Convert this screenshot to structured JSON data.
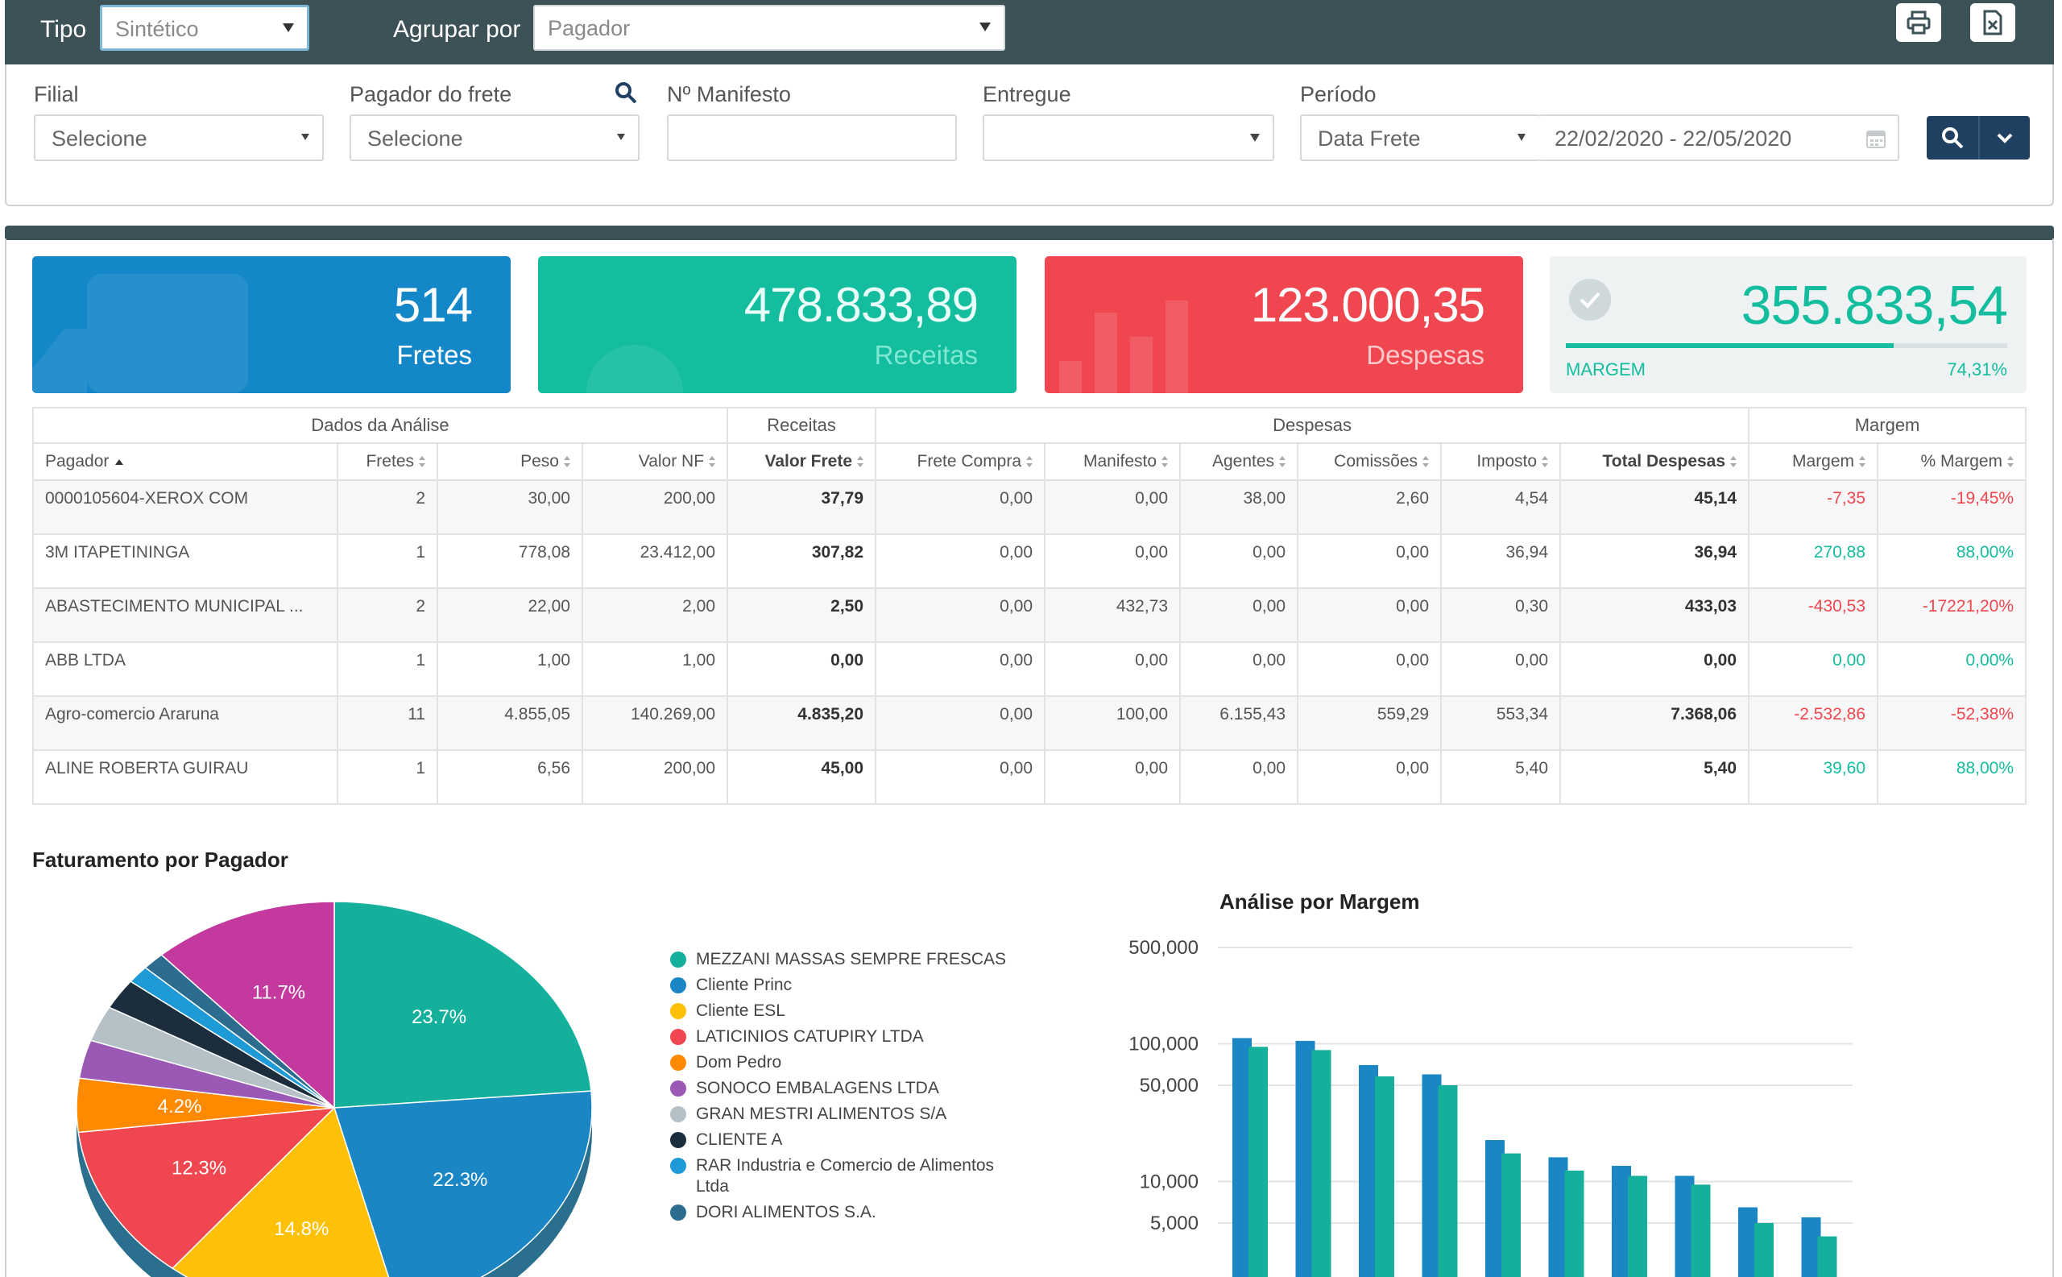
{
  "topbar": {
    "tipo_label": "Tipo",
    "tipo_value": "Sintético",
    "agrupar_label": "Agrupar por",
    "agrupar_value": "Pagador",
    "print_icon": "printer-icon",
    "export_icon": "file-export-icon"
  },
  "filters": {
    "filial_label": "Filial",
    "filial_value": "Selecione",
    "pagador_label": "Pagador do frete",
    "pagador_value": "Selecione",
    "manifesto_label": "Nº Manifesto",
    "manifesto_value": "",
    "entregue_label": "Entregue",
    "entregue_value": "",
    "periodo_label": "Período",
    "periodo_tipo": "Data Frete",
    "periodo_range": "22/02/2020 - 22/05/2020"
  },
  "kpis": {
    "fretes_value": "514",
    "fretes_label": "Fretes",
    "receitas_value": "478.833,89",
    "receitas_label": "Receitas",
    "despesas_value": "123.000,35",
    "despesas_label": "Despesas",
    "margem_value": "355.833,54",
    "margem_label": "MARGEM",
    "margem_percent": "74,31%",
    "margem_fraction": 0.7431
  },
  "table": {
    "groups": [
      "Dados da Análise",
      "Receitas",
      "Despesas",
      "Margem"
    ],
    "headers": [
      "Pagador",
      "Fretes",
      "Peso",
      "Valor NF",
      "Valor Frete",
      "Frete Compra",
      "Manifesto",
      "Agentes",
      "Comissões",
      "Imposto",
      "Total Despesas",
      "Margem",
      "% Margem"
    ],
    "rows": [
      [
        "0000105604-XEROX COM",
        "2",
        "30,00",
        "200,00",
        "37,79",
        "0,00",
        "0,00",
        "38,00",
        "2,60",
        "4,54",
        "45,14",
        "-7,35",
        "-19,45%"
      ],
      [
        "3M ITAPETININGA",
        "1",
        "778,08",
        "23.412,00",
        "307,82",
        "0,00",
        "0,00",
        "0,00",
        "0,00",
        "36,94",
        "36,94",
        "270,88",
        "88,00%"
      ],
      [
        "ABASTECIMENTO MUNICIPAL ...",
        "2",
        "22,00",
        "2,00",
        "2,50",
        "0,00",
        "432,73",
        "0,00",
        "0,00",
        "0,30",
        "433,03",
        "-430,53",
        "-17221,20%"
      ],
      [
        "ABB LTDA",
        "1",
        "1,00",
        "1,00",
        "0,00",
        "0,00",
        "0,00",
        "0,00",
        "0,00",
        "0,00",
        "0,00",
        "0,00",
        "0,00%"
      ],
      [
        "Agro-comercio Araruna",
        "11",
        "4.855,05",
        "140.269,00",
        "4.835,20",
        "0,00",
        "100,00",
        "6.155,43",
        "559,29",
        "553,34",
        "7.368,06",
        "-2.532,86",
        "-52,38%"
      ],
      [
        "ALINE ROBERTA GUIRAU",
        "1",
        "6,56",
        "200,00",
        "45,00",
        "0,00",
        "0,00",
        "0,00",
        "0,00",
        "5,40",
        "5,40",
        "39,60",
        "88,00%"
      ]
    ]
  },
  "pie": {
    "title": "Faturamento por Pagador",
    "legend": [
      {
        "label": "MEZZANI MASSAS SEMPRE FRESCAS",
        "color": "#14b09c"
      },
      {
        "label": "Cliente Princ",
        "color": "#1a86c4"
      },
      {
        "label": "Cliente ESL",
        "color": "#ffc107"
      },
      {
        "label": "LATICINIOS CATUPIRY LTDA",
        "color": "#f0464f"
      },
      {
        "label": "Dom Pedro",
        "color": "#ff8a00"
      },
      {
        "label": "SONOCO EMBALAGENS LTDA",
        "color": "#9b59b6"
      },
      {
        "label": "GRAN MESTRI ALIMENTOS S/A",
        "color": "#b5c1c7"
      },
      {
        "label": "CLIENTE A",
        "color": "#1c2e3d"
      },
      {
        "label": "RAR Industria e Comercio de Alimentos Ltda",
        "color": "#1e9ad6"
      },
      {
        "label": "DORI ALIMENTOS S.A.",
        "color": "#2c6d8f"
      }
    ]
  },
  "chart_data": [
    {
      "type": "pie",
      "title": "Faturamento por Pagador",
      "slices": [
        {
          "label": "MEZZANI MASSAS SEMPRE FRESCAS",
          "value": 23.7,
          "display": "23.7%",
          "color": "#14b09c"
        },
        {
          "label": "Cliente Princ",
          "value": 22.3,
          "display": "22.3%",
          "color": "#1a86c4"
        },
        {
          "label": "Cliente ESL",
          "value": 14.8,
          "display": "14.8%",
          "color": "#ffc107"
        },
        {
          "label": "LATICINIOS CATUPIRY LTDA",
          "value": 12.3,
          "display": "12.3%",
          "color": "#f0464f"
        },
        {
          "label": "Dom Pedro",
          "value": 4.2,
          "display": "4.2%",
          "color": "#ff8a00"
        },
        {
          "label": "SONOCO EMBALAGENS LTDA",
          "value": 3.0,
          "display": "",
          "color": "#9b59b6"
        },
        {
          "label": "GRAN MESTRI ALIMENTOS S/A",
          "value": 2.8,
          "display": "",
          "color": "#b5c1c7"
        },
        {
          "label": "CLIENTE A",
          "value": 2.4,
          "display": "",
          "color": "#1c2e3d"
        },
        {
          "label": "RAR Industria e Comercio de Alimentos Ltda",
          "value": 1.4,
          "display": "",
          "color": "#1e9ad6"
        },
        {
          "label": "DORI ALIMENTOS S.A.",
          "value": 1.4,
          "display": "",
          "color": "#2c6d8f"
        },
        {
          "label": "",
          "value": 11.7,
          "display": "11.7%",
          "color": "#c4399e"
        }
      ]
    },
    {
      "type": "bar",
      "title": "Análise por Margem",
      "y_scale": "log",
      "ylim": [
        1000,
        500000
      ],
      "y_ticks": [
        500000,
        100000,
        50000,
        10000,
        5000
      ],
      "y_tick_labels": [
        "500,000",
        "100,000",
        "50,000",
        "10,000",
        "5,000"
      ],
      "series": [
        {
          "color": "#1a86c4",
          "values": [
            110000,
            105000,
            70000,
            60000,
            20000,
            15000,
            13000,
            11000,
            6500,
            5500
          ]
        },
        {
          "color": "#14b09c",
          "values": [
            95000,
            90000,
            58000,
            50000,
            16000,
            12000,
            11000,
            9500,
            5000,
            4000
          ]
        }
      ]
    }
  ]
}
